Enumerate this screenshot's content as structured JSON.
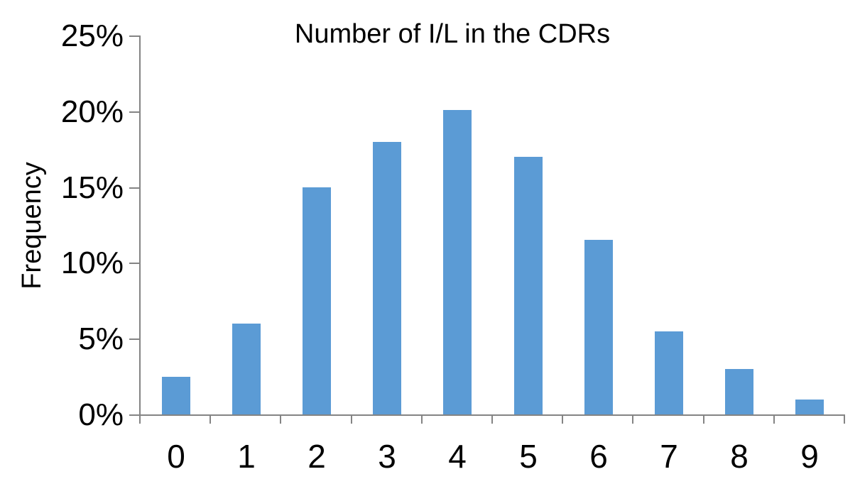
{
  "chart_data": {
    "type": "bar",
    "title": "Number of I/L in the CDRs",
    "xlabel": "",
    "ylabel": "Frequency",
    "categories": [
      "0",
      "1",
      "2",
      "3",
      "4",
      "5",
      "6",
      "7",
      "8",
      "9"
    ],
    "values": [
      2.5,
      6,
      15,
      18,
      20.1,
      17,
      11.5,
      5.5,
      3,
      1
    ],
    "value_unit": "%",
    "ylim": [
      0,
      25
    ],
    "y_ticks": [
      {
        "value": 0,
        "label": "0%"
      },
      {
        "value": 5,
        "label": "5%"
      },
      {
        "value": 10,
        "label": "10%"
      },
      {
        "value": 15,
        "label": "15%"
      },
      {
        "value": 20,
        "label": "20%"
      },
      {
        "value": 25,
        "label": "25%"
      }
    ],
    "grid": false,
    "legend": false,
    "colors": {
      "bar": "#5B9BD5",
      "axis": "#848484",
      "text": "#000000",
      "background": "#FFFFFF"
    }
  }
}
